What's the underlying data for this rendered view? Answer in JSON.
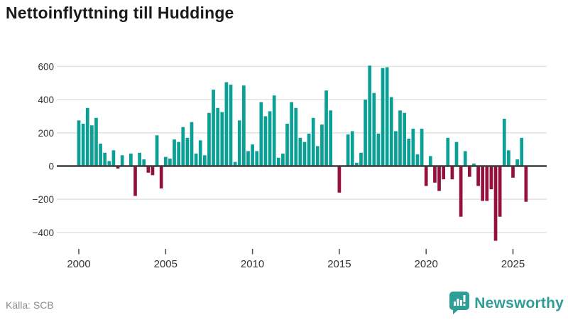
{
  "title": "Nettoinflyttning till Huddinge",
  "footer": {
    "source": "Källa: SCB",
    "brand": "Newsworthy"
  },
  "colors": {
    "positive_bar": "#0aa096",
    "negative_bar": "#94103d",
    "gridline": "#e4e4e4",
    "zero_axis": "#3b3b3b",
    "tick_label": "#333333",
    "title_text": "#1a1a1a",
    "source_text": "#8c8c8c",
    "brand_teal": "#2f9e97"
  },
  "chart_data": {
    "type": "bar",
    "title": "Nettoinflyttning till Huddinge",
    "frequency": "quarterly",
    "start": "2000-Q1",
    "end": "2025-Q4",
    "values": [
      275,
      255,
      350,
      245,
      290,
      135,
      80,
      30,
      95,
      -15,
      65,
      0,
      75,
      -180,
      80,
      40,
      -40,
      -55,
      185,
      -135,
      55,
      45,
      160,
      145,
      235,
      170,
      265,
      75,
      155,
      65,
      320,
      460,
      350,
      325,
      505,
      490,
      25,
      275,
      485,
      90,
      130,
      90,
      385,
      300,
      330,
      425,
      50,
      75,
      255,
      385,
      350,
      170,
      145,
      195,
      290,
      120,
      250,
      455,
      335,
      0,
      -160,
      0,
      190,
      210,
      20,
      80,
      400,
      605,
      440,
      195,
      590,
      595,
      415,
      210,
      335,
      320,
      165,
      225,
      70,
      225,
      -120,
      60,
      -100,
      -150,
      -80,
      170,
      -80,
      145,
      -305,
      90,
      -65,
      15,
      -120,
      -210,
      -210,
      -140,
      -450,
      -305,
      285,
      95,
      -70,
      40,
      170,
      -215
    ],
    "x_tick_labels": [
      "2000",
      "2005",
      "2010",
      "2015",
      "2020",
      "2025"
    ],
    "x_tick_every_n_bars": 20,
    "y_ticks": [
      600,
      400,
      200,
      0,
      -200,
      -400
    ],
    "y_tick_labels": [
      "600",
      "400",
      "200",
      "0",
      "−200",
      "−400"
    ],
    "ylim": [
      -500,
      650
    ],
    "grid": true,
    "legend": false
  }
}
